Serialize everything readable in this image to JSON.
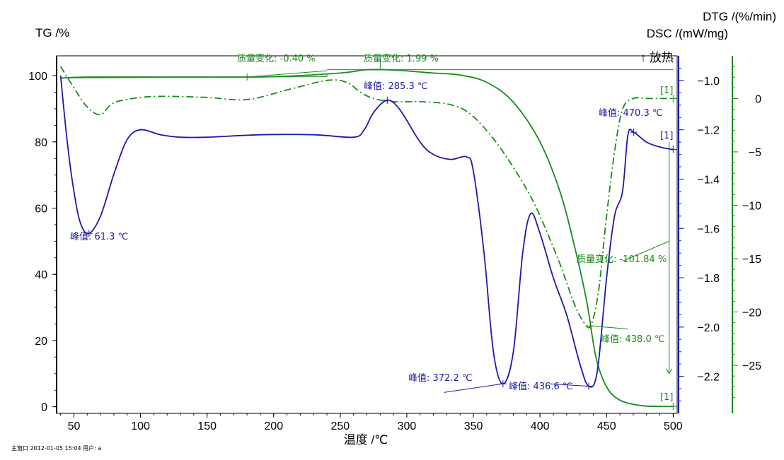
{
  "chart_data": {
    "type": "line",
    "xlabel": "温度 /℃",
    "x_ticks": [
      50,
      100,
      150,
      200,
      250,
      300,
      350,
      400,
      450,
      500
    ],
    "xlim": [
      37,
      503
    ],
    "axes": {
      "tg": {
        "label": "TG /%",
        "ylim": [
          -2,
          106
        ],
        "ticks": [
          0,
          20,
          40,
          60,
          80,
          100
        ]
      },
      "dsc": {
        "label": "DSC /(mW/mg)",
        "ylim": [
          -2.35,
          -0.9
        ],
        "ticks": [
          -1.0,
          -1.2,
          -1.4,
          -1.6,
          -1.8,
          -2.0,
          -2.2
        ]
      },
      "dtg": {
        "label": "DTG /(%/min)",
        "ylim": [
          -29.5,
          4
        ],
        "ticks": [
          0,
          -5,
          -10,
          -15,
          -20,
          -25
        ]
      }
    },
    "exo_label": "↑ 放热",
    "series": [
      {
        "key": "tg",
        "axis": "tg",
        "color": "#1a8a1a",
        "dash": "",
        "points": [
          [
            40,
            99.3
          ],
          [
            60,
            99.6
          ],
          [
            100,
            99.6
          ],
          [
            150,
            99.6
          ],
          [
            200,
            99.7
          ],
          [
            250,
            100.8
          ],
          [
            270,
            101.8
          ],
          [
            290,
            101.7
          ],
          [
            320,
            100.8
          ],
          [
            340,
            100.2
          ],
          [
            360,
            98.0
          ],
          [
            380,
            92.0
          ],
          [
            400,
            80.0
          ],
          [
            415,
            65.0
          ],
          [
            425,
            50.0
          ],
          [
            435,
            32.0
          ],
          [
            442,
            15.0
          ],
          [
            450,
            6.0
          ],
          [
            460,
            2.0
          ],
          [
            475,
            0.4
          ],
          [
            490,
            0.1
          ],
          [
            500,
            0.1
          ]
        ]
      },
      {
        "key": "dtg",
        "axis": "dtg",
        "color": "#1a8a1a",
        "dash": "10,4,2,4",
        "points": [
          [
            40,
            3.0
          ],
          [
            50,
            1.0
          ],
          [
            60,
            -0.8
          ],
          [
            70,
            -1.5
          ],
          [
            80,
            -0.4
          ],
          [
            100,
            0.1
          ],
          [
            120,
            0.2
          ],
          [
            150,
            0.1
          ],
          [
            180,
            -0.1
          ],
          [
            210,
            0.8
          ],
          [
            240,
            1.7
          ],
          [
            255,
            1.5
          ],
          [
            265,
            0.6
          ],
          [
            275,
            0.0
          ],
          [
            290,
            -0.3
          ],
          [
            310,
            -0.3
          ],
          [
            330,
            -0.5
          ],
          [
            345,
            -1.2
          ],
          [
            360,
            -3.0
          ],
          [
            375,
            -5.5
          ],
          [
            390,
            -8.5
          ],
          [
            400,
            -11.0
          ],
          [
            415,
            -15.5
          ],
          [
            425,
            -19.0
          ],
          [
            432,
            -20.8
          ],
          [
            438,
            -21.3
          ],
          [
            444,
            -18.0
          ],
          [
            450,
            -11.0
          ],
          [
            456,
            -5.0
          ],
          [
            462,
            -1.0
          ],
          [
            470,
            0.0
          ],
          [
            480,
            0.0
          ],
          [
            490,
            0.0
          ],
          [
            500,
            0.0
          ]
        ]
      },
      {
        "key": "dsc",
        "axis": "dsc",
        "color": "#1a1aaa",
        "dash": "",
        "points": [
          [
            40,
            -0.98
          ],
          [
            45,
            -1.25
          ],
          [
            50,
            -1.45
          ],
          [
            55,
            -1.58
          ],
          [
            61.3,
            -1.62
          ],
          [
            70,
            -1.55
          ],
          [
            80,
            -1.38
          ],
          [
            90,
            -1.24
          ],
          [
            100,
            -1.2
          ],
          [
            115,
            -1.22
          ],
          [
            130,
            -1.23
          ],
          [
            150,
            -1.23
          ],
          [
            190,
            -1.22
          ],
          [
            230,
            -1.22
          ],
          [
            260,
            -1.23
          ],
          [
            268,
            -1.2
          ],
          [
            275,
            -1.13
          ],
          [
            285.3,
            -1.08
          ],
          [
            295,
            -1.12
          ],
          [
            310,
            -1.25
          ],
          [
            320,
            -1.3
          ],
          [
            333,
            -1.32
          ],
          [
            345,
            -1.31
          ],
          [
            350,
            -1.37
          ],
          [
            358,
            -1.7
          ],
          [
            365,
            -2.1
          ],
          [
            372.2,
            -2.23
          ],
          [
            380,
            -2.1
          ],
          [
            387,
            -1.7
          ],
          [
            393,
            -1.54
          ],
          [
            400,
            -1.62
          ],
          [
            410,
            -1.8
          ],
          [
            420,
            -1.95
          ],
          [
            430,
            -2.15
          ],
          [
            436.6,
            -2.24
          ],
          [
            443,
            -2.18
          ],
          [
            450,
            -1.8
          ],
          [
            456,
            -1.55
          ],
          [
            462,
            -1.45
          ],
          [
            466,
            -1.22
          ],
          [
            470.3,
            -1.21
          ],
          [
            480,
            -1.25
          ],
          [
            490,
            -1.27
          ],
          [
            500,
            -1.28
          ]
        ]
      }
    ],
    "annotations": {
      "mass1": "质量变化: -0.40 %",
      "mass2": "质量变化: 1.99 %",
      "mass3": "质量变化: -101.84 %",
      "peak1": "峰值: 61.3 ℃",
      "peak2": "峰值: 285.3 ℃",
      "peak3": "峰值: 372.2 ℃",
      "peak4": "峰值: 436.6 ℃",
      "peak5": "峰值: 470.3 ℃",
      "peak6": "峰值: 438.0 ℃",
      "marker": "[1]"
    }
  },
  "footer": "主窗口 2012-01-05 15:04 用户: a"
}
